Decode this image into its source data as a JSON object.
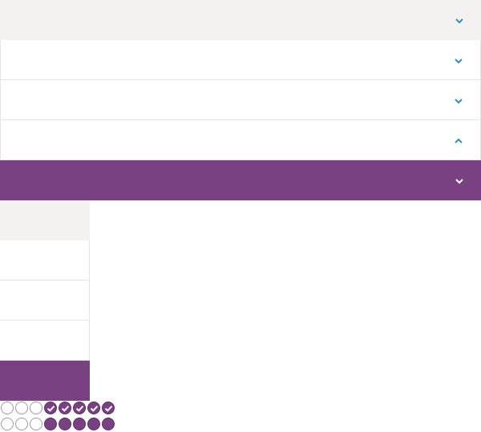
{
  "colors": {
    "accent": "#7a4182",
    "chevron": "#2a8fc7",
    "chevron_active": "#ffffff",
    "row_muted": "#f3f2f1",
    "border": "#e6e4e4"
  },
  "accordion": {
    "rows": [
      {
        "label": "",
        "state": "collapsed",
        "icon": "chevron-down-icon"
      },
      {
        "label": "",
        "state": "collapsed",
        "icon": "chevron-down-icon"
      },
      {
        "label": "",
        "state": "collapsed",
        "icon": "chevron-down-icon"
      },
      {
        "label": "",
        "state": "expanded",
        "icon": "chevron-up-icon"
      },
      {
        "label": "",
        "state": "selected",
        "icon": "chevron-down-icon"
      }
    ]
  },
  "sub_list": {
    "items": [
      {
        "label": ""
      },
      {
        "label": ""
      },
      {
        "label": ""
      },
      {
        "label": ""
      },
      {
        "label": "",
        "selected": true
      }
    ]
  },
  "rating_rows": {
    "row1": {
      "total": 8,
      "filled": 5,
      "style": "check"
    },
    "row2": {
      "total": 8,
      "filled": 5,
      "style": "solid"
    }
  }
}
